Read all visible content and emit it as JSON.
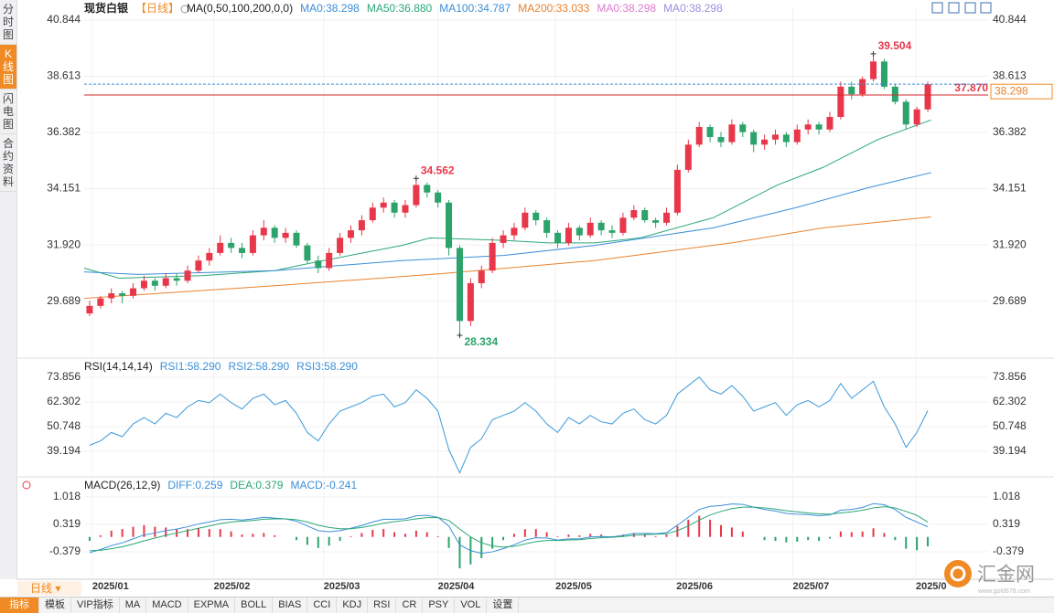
{
  "sidebar": [
    "分时图",
    "K线图",
    "闪电图",
    "合约资料"
  ],
  "sidebar_active": 1,
  "period_button": "日线",
  "tabs": [
    "指标",
    "模板",
    "VIP指标",
    "MA",
    "MACD",
    "EXPMA",
    "BOLL",
    "BIAS",
    "CCI",
    "KDJ",
    "RSI",
    "CR",
    "PSY",
    "VOL",
    "设置"
  ],
  "tabs_active": 0,
  "logo": {
    "name": "汇金网",
    "url": "www.gold678.com"
  },
  "chart_data": [
    {
      "type": "candlestick",
      "title": "现货白银",
      "period": "【日线】",
      "indicator": "MA(0,50,100,200,0,0)",
      "legend": [
        {
          "text": "MA0:38.298",
          "color": "#3b8fd9"
        },
        {
          "text": "MA50:36.880",
          "color": "#2aa876"
        },
        {
          "text": "MA100:34.787",
          "color": "#3b8fd9"
        },
        {
          "text": "MA200:33.033",
          "color": "#e8822e"
        },
        {
          "text": "MA0:38.298",
          "color": "#e07bd0"
        },
        {
          "text": "MA0:38.298",
          "color": "#9b8fe0"
        }
      ],
      "up_color": "#e8374a",
      "down_color": "#2ba36b",
      "candles": [
        [
          29.2,
          29.7,
          29.1,
          29.5
        ],
        [
          29.5,
          29.9,
          29.4,
          29.8
        ],
        [
          29.8,
          30.2,
          29.6,
          30.0
        ],
        [
          30.0,
          30.1,
          29.6,
          29.9
        ],
        [
          29.9,
          30.4,
          29.8,
          30.2
        ],
        [
          30.2,
          30.7,
          30.1,
          30.5
        ],
        [
          30.5,
          30.6,
          30.1,
          30.3
        ],
        [
          30.3,
          30.8,
          30.2,
          30.6
        ],
        [
          30.6,
          30.8,
          30.3,
          30.5
        ],
        [
          30.5,
          31.1,
          30.4,
          30.9
        ],
        [
          30.9,
          31.5,
          30.8,
          31.3
        ],
        [
          31.3,
          31.8,
          31.1,
          31.6
        ],
        [
          31.6,
          32.3,
          31.5,
          32.0
        ],
        [
          32.0,
          32.2,
          31.6,
          31.8
        ],
        [
          31.8,
          32.0,
          31.4,
          31.6
        ],
        [
          31.6,
          32.5,
          31.5,
          32.3
        ],
        [
          32.3,
          32.9,
          32.1,
          32.6
        ],
        [
          32.6,
          32.7,
          32.0,
          32.2
        ],
        [
          32.2,
          32.6,
          32.0,
          32.4
        ],
        [
          32.4,
          32.5,
          31.8,
          31.9
        ],
        [
          31.9,
          32.0,
          31.2,
          31.3
        ],
        [
          31.3,
          31.5,
          30.8,
          31.0
        ],
        [
          31.0,
          31.8,
          30.9,
          31.6
        ],
        [
          31.6,
          32.4,
          31.5,
          32.2
        ],
        [
          32.2,
          32.7,
          32.0,
          32.5
        ],
        [
          32.5,
          33.1,
          32.3,
          32.9
        ],
        [
          32.9,
          33.6,
          32.8,
          33.4
        ],
        [
          33.4,
          33.8,
          33.2,
          33.6
        ],
        [
          33.6,
          33.7,
          33.0,
          33.2
        ],
        [
          33.2,
          33.7,
          33.0,
          33.5
        ],
        [
          33.5,
          34.562,
          33.4,
          34.3
        ],
        [
          34.3,
          34.4,
          33.8,
          34.0
        ],
        [
          34.0,
          34.1,
          33.4,
          33.6
        ],
        [
          33.6,
          33.7,
          31.5,
          31.8
        ],
        [
          31.8,
          31.9,
          28.334,
          28.9
        ],
        [
          28.9,
          30.6,
          28.7,
          30.4
        ],
        [
          30.4,
          31.1,
          30.2,
          30.9
        ],
        [
          30.9,
          32.2,
          30.8,
          32.0
        ],
        [
          32.0,
          32.5,
          31.8,
          32.3
        ],
        [
          32.3,
          32.8,
          32.1,
          32.6
        ],
        [
          32.6,
          33.4,
          32.5,
          33.2
        ],
        [
          33.2,
          33.3,
          32.7,
          32.9
        ],
        [
          32.9,
          33.0,
          32.2,
          32.4
        ],
        [
          32.4,
          32.5,
          31.8,
          32.0
        ],
        [
          32.0,
          32.8,
          31.9,
          32.6
        ],
        [
          32.6,
          32.7,
          32.1,
          32.3
        ],
        [
          32.3,
          33.0,
          32.2,
          32.8
        ],
        [
          32.8,
          32.9,
          32.3,
          32.5
        ],
        [
          32.5,
          32.7,
          32.2,
          32.4
        ],
        [
          32.4,
          33.2,
          32.3,
          33.0
        ],
        [
          33.0,
          33.5,
          32.9,
          33.3
        ],
        [
          33.3,
          33.4,
          32.8,
          32.9
        ],
        [
          32.9,
          33.0,
          32.6,
          32.8
        ],
        [
          32.8,
          33.4,
          32.7,
          33.2
        ],
        [
          33.2,
          35.1,
          33.1,
          34.9
        ],
        [
          34.9,
          36.1,
          34.8,
          35.9
        ],
        [
          35.9,
          36.8,
          35.8,
          36.6
        ],
        [
          36.6,
          36.7,
          36.0,
          36.2
        ],
        [
          36.2,
          36.4,
          35.8,
          36.0
        ],
        [
          36.0,
          36.9,
          35.9,
          36.7
        ],
        [
          36.7,
          36.8,
          36.2,
          36.4
        ],
        [
          36.4,
          36.5,
          35.6,
          35.9
        ],
        [
          35.9,
          36.3,
          35.7,
          36.1
        ],
        [
          36.1,
          36.5,
          35.9,
          36.3
        ],
        [
          36.3,
          36.4,
          35.8,
          36.0
        ],
        [
          36.0,
          36.7,
          35.9,
          36.5
        ],
        [
          36.5,
          36.9,
          36.3,
          36.7
        ],
        [
          36.7,
          36.8,
          36.3,
          36.5
        ],
        [
          36.5,
          37.2,
          36.4,
          37.0
        ],
        [
          37.0,
          38.4,
          36.9,
          38.2
        ],
        [
          38.2,
          38.4,
          37.7,
          37.9
        ],
        [
          37.9,
          38.6,
          37.8,
          38.5
        ],
        [
          38.5,
          39.504,
          38.4,
          39.2
        ],
        [
          39.2,
          39.3,
          38.1,
          38.2
        ],
        [
          38.2,
          38.3,
          37.5,
          37.6
        ],
        [
          37.6,
          37.7,
          36.5,
          36.7
        ],
        [
          36.7,
          37.4,
          36.6,
          37.3
        ],
        [
          37.3,
          38.4,
          37.2,
          38.298
        ]
      ],
      "series": [
        {
          "color": "#2aa876",
          "x": [
            -0.5,
            2.7,
            10.3,
            17,
            20.3,
            28.7,
            31.3,
            38,
            42.2,
            46.4,
            50.6,
            57.3,
            63.2,
            67.4,
            72.4,
            77.3
          ],
          "values": [
            31.0,
            30.6,
            30.7,
            30.9,
            31.2,
            31.9,
            32.2,
            32.1,
            32.0,
            32.0,
            32.2,
            33.0,
            34.3,
            35.0,
            36.1,
            36.88
          ]
        },
        {
          "color": "#3b8fd9",
          "x": [
            -0.5,
            4.4,
            17,
            28.7,
            38,
            46.4,
            57.3,
            64.9,
            71.6,
            77.3
          ],
          "values": [
            30.85,
            30.75,
            30.9,
            31.3,
            31.5,
            31.9,
            32.6,
            33.4,
            34.2,
            34.787
          ]
        },
        {
          "color": "#e8822e",
          "x": [
            -0.5,
            17,
            32.1,
            46.4,
            59,
            67.4,
            77.3
          ],
          "values": [
            29.8,
            30.3,
            30.77,
            31.3,
            32.0,
            32.6,
            33.033
          ]
        }
      ],
      "extremes": [
        34.562,
        28.334,
        39.504
      ],
      "last_price": 38.298,
      "ref_price": {
        "value": 37.87,
        "label": "37.870"
      },
      "xlim": [
        -0.5,
        77.5
      ],
      "xticks": [
        {
          "value": 0.25,
          "label": "2025/01"
        },
        {
          "value": 11.4,
          "label": "2025/02"
        },
        {
          "value": 21.5,
          "label": "2025/03"
        },
        {
          "value": 32.0,
          "label": "2025/04"
        },
        {
          "value": 42.8,
          "label": "2025/05"
        },
        {
          "value": 53.9,
          "label": "2025/06"
        },
        {
          "value": 64.6,
          "label": "2025/07"
        },
        {
          "value": 75.9,
          "label": "2025/0"
        }
      ],
      "ylim": [
        27.5,
        41.35
      ],
      "yticks": [
        40.844,
        38.613,
        36.382,
        34.151,
        {
          "value": 31.92,
          "label": "31.920"
        },
        29.689
      ],
      "grid": true
    },
    {
      "type": "line",
      "title": "RSI(14,14,14)",
      "legend": [
        {
          "text": "RSI1:58.290",
          "color": "#3b8fd9"
        },
        {
          "text": "RSI2:58.290",
          "color": "#3b8fd9"
        },
        {
          "text": "RSI3:58.290",
          "color": "#3b8fd9"
        }
      ],
      "color": "#3b9ad9",
      "values": [
        42,
        44,
        48,
        46,
        52,
        55,
        52,
        57,
        55,
        60,
        63,
        62,
        66,
        62,
        59,
        64,
        66,
        61,
        63,
        57,
        48,
        44,
        52,
        58,
        60,
        62,
        65,
        66,
        60,
        62,
        68,
        64,
        58,
        40,
        29,
        41,
        45,
        54,
        56,
        58,
        62,
        58,
        52,
        48,
        55,
        52,
        56,
        53,
        52,
        57,
        59,
        54,
        52,
        56,
        66,
        70,
        74,
        68,
        66,
        70,
        65,
        58,
        60,
        62,
        56,
        61,
        63,
        60,
        63,
        71,
        64,
        68,
        72,
        60,
        52,
        41,
        48,
        58.29
      ],
      "ylim": [
        28.0,
        81.6
      ],
      "yticks": [
        73.856,
        62.302,
        50.748,
        39.194
      ],
      "grid": true
    },
    {
      "type": "macd",
      "title": "MACD(26,12,9)",
      "legend": [
        {
          "text": "DIFF:0.259",
          "color": "#3b8fd9"
        },
        {
          "text": "DEA:0.379",
          "color": "#2aa876"
        },
        {
          "text": "MACD:-0.241",
          "color": "#3b8fd9"
        }
      ],
      "series": [
        {
          "color": "#3b8fd9",
          "values": [
            -0.4,
            -0.32,
            -0.22,
            -0.15,
            -0.05,
            0.05,
            0.1,
            0.16,
            0.2,
            0.26,
            0.33,
            0.38,
            0.44,
            0.45,
            0.43,
            0.46,
            0.5,
            0.48,
            0.46,
            0.4,
            0.28,
            0.16,
            0.13,
            0.16,
            0.22,
            0.29,
            0.38,
            0.45,
            0.45,
            0.46,
            0.54,
            0.55,
            0.5,
            0.28,
            -0.2,
            -0.35,
            -0.42,
            -0.38,
            -0.3,
            -0.2,
            -0.08,
            -0.02,
            -0.03,
            -0.08,
            -0.05,
            -0.05,
            0.0,
            0.01,
            0.0,
            0.04,
            0.09,
            0.09,
            0.08,
            0.11,
            0.3,
            0.5,
            0.7,
            0.78,
            0.8,
            0.84,
            0.83,
            0.76,
            0.7,
            0.66,
            0.6,
            0.58,
            0.57,
            0.54,
            0.56,
            0.68,
            0.7,
            0.75,
            0.85,
            0.82,
            0.7,
            0.5,
            0.38,
            0.259
          ]
        },
        {
          "color": "#2aa876",
          "values": [
            -0.35,
            -0.34,
            -0.3,
            -0.25,
            -0.18,
            -0.1,
            -0.03,
            0.04,
            0.1,
            0.16,
            0.22,
            0.28,
            0.34,
            0.38,
            0.4,
            0.42,
            0.45,
            0.46,
            0.46,
            0.44,
            0.38,
            0.3,
            0.24,
            0.21,
            0.21,
            0.24,
            0.29,
            0.35,
            0.39,
            0.42,
            0.46,
            0.49,
            0.49,
            0.42,
            0.2,
            0.0,
            -0.15,
            -0.23,
            -0.26,
            -0.24,
            -0.18,
            -0.12,
            -0.09,
            -0.09,
            -0.08,
            -0.07,
            -0.04,
            -0.02,
            -0.01,
            0.01,
            0.04,
            0.06,
            0.07,
            0.08,
            0.16,
            0.28,
            0.43,
            0.56,
            0.65,
            0.72,
            0.76,
            0.76,
            0.74,
            0.71,
            0.67,
            0.64,
            0.61,
            0.59,
            0.58,
            0.61,
            0.64,
            0.68,
            0.74,
            0.77,
            0.74,
            0.65,
            0.55,
            0.379
          ]
        }
      ],
      "bars": {
        "up_color": "#e8374a",
        "down_color": "#2ba36b",
        "values": [
          -0.1,
          0.04,
          0.16,
          0.2,
          0.26,
          0.3,
          0.26,
          0.24,
          0.2,
          0.2,
          0.22,
          0.2,
          0.2,
          0.14,
          0.06,
          0.08,
          0.1,
          0.04,
          0.0,
          -0.08,
          -0.2,
          -0.28,
          -0.22,
          -0.1,
          0.02,
          0.1,
          0.18,
          0.2,
          0.12,
          0.08,
          0.16,
          0.12,
          0.02,
          -0.28,
          -0.8,
          -0.7,
          -0.54,
          -0.3,
          -0.08,
          0.08,
          0.2,
          0.2,
          0.12,
          0.02,
          0.06,
          0.04,
          0.08,
          0.06,
          0.02,
          0.06,
          0.1,
          0.06,
          0.02,
          0.06,
          0.28,
          0.44,
          0.54,
          0.44,
          0.3,
          0.24,
          0.14,
          0.0,
          -0.08,
          -0.1,
          -0.14,
          -0.12,
          -0.08,
          -0.1,
          -0.04,
          0.14,
          0.12,
          0.14,
          0.22,
          0.1,
          -0.08,
          -0.3,
          -0.34,
          -0.241
        ]
      },
      "ylim": [
        -1.03,
        1.46
      ],
      "yticks": [
        1.018,
        0.319,
        -0.379
      ],
      "grid": true
    }
  ]
}
